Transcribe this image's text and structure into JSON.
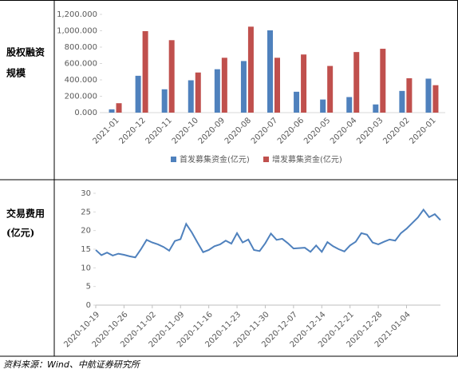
{
  "rows": [
    {
      "label": [
        "股权融资",
        "规模"
      ]
    },
    {
      "label": [
        "交易费用",
        "(亿元)"
      ]
    }
  ],
  "source": "资料来源：Wind、中航证券研究所",
  "chart_data": [
    {
      "type": "bar",
      "categories": [
        "2021-01",
        "2020-12",
        "2020-11",
        "2020-10",
        "2020-09",
        "2020-08",
        "2020-07",
        "2020-06",
        "2020-05",
        "2020-04",
        "2020-03",
        "2020-02",
        "2020-01"
      ],
      "series": [
        {
          "name": "首发募集资金(亿元)",
          "color": "#4f81bd",
          "values": [
            40,
            450,
            285,
            395,
            530,
            630,
            1005,
            255,
            160,
            190,
            100,
            265,
            415
          ]
        },
        {
          "name": "增发募集资金(亿元)",
          "color": "#c0504d",
          "values": [
            115,
            995,
            885,
            490,
            670,
            1050,
            670,
            710,
            570,
            740,
            780,
            420,
            335
          ]
        }
      ],
      "ylim": [
        0,
        1200
      ],
      "yticks": [
        {
          "value": 0,
          "label": "0.000"
        },
        {
          "value": 200,
          "label": "200.000"
        },
        {
          "value": 400,
          "label": "400.000"
        },
        {
          "value": 600,
          "label": "600.000"
        },
        {
          "value": 800,
          "label": "800.000"
        },
        {
          "value": 1000,
          "label": "1,000.000"
        },
        {
          "value": 1200,
          "label": "1,200.000"
        }
      ],
      "legend": "bottom"
    },
    {
      "type": "line",
      "categories": [
        "2020-10-19",
        null,
        null,
        null,
        null,
        "2020-10-26",
        null,
        null,
        null,
        null,
        "2020-11-02",
        null,
        null,
        null,
        null,
        "2020-11-09",
        null,
        null,
        null,
        null,
        "2020-11-16",
        null,
        null,
        null,
        null,
        "2020-11-23",
        null,
        null,
        null,
        null,
        "2020-11-30",
        null,
        null,
        null,
        null,
        "2020-12-07",
        null,
        null,
        null,
        null,
        "2020-12-14",
        null,
        null,
        null,
        null,
        "2020-12-21",
        null,
        null,
        null,
        null,
        "2020-12-28",
        null,
        null,
        null,
        null,
        "2021-01-04",
        null,
        null,
        null,
        null,
        null,
        null
      ],
      "series": [
        {
          "color": "#4f81bd",
          "values": [
            14.8,
            13.4,
            14.1,
            13.3,
            13.8,
            13.5,
            13.1,
            12.8,
            15.0,
            17.5,
            16.8,
            16.3,
            15.6,
            14.6,
            17.2,
            17.7,
            21.8,
            19.5,
            16.8,
            14.2,
            14.8,
            15.8,
            16.3,
            17.3,
            16.5,
            19.3,
            16.8,
            17.6,
            14.8,
            14.5,
            16.6,
            19.2,
            17.5,
            17.8,
            16.6,
            15.2,
            15.3,
            15.4,
            14.3,
            16.0,
            14.3,
            16.9,
            15.8,
            15.0,
            14.4,
            16.0,
            17.0,
            19.3,
            18.9,
            16.8,
            16.3,
            17.0,
            17.6,
            17.3,
            19.3,
            20.5,
            22.0,
            23.5,
            25.6,
            23.6,
            24.4,
            22.8
          ]
        }
      ],
      "ylim": [
        0,
        30
      ],
      "yticks": [
        0,
        5,
        10,
        15,
        20,
        25,
        30
      ]
    }
  ]
}
